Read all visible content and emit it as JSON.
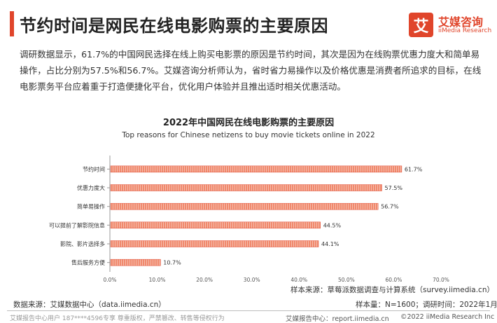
{
  "header": {
    "title": "节约时间是网民在线电影购票的主要原因"
  },
  "logo": {
    "mark": "艾",
    "name_cn": "艾媒咨询",
    "name_en": "iiMedia Research"
  },
  "intro": {
    "text": "调研数据显示，61.7%的中国网民选择在线上购买电影票的原因是节约时间，其次是因为在线购票优惠力度大和简单易操作，占比分别为57.5%和56.7%。艾媒咨询分析师认为，省时省力易操作以及价格优惠是消费者所追求的目标，在线电影票务平台应着重于打造便捷化平台，优化用户体验并且推出适时相关优惠活动。"
  },
  "chart_data": {
    "type": "bar",
    "orientation": "horizontal",
    "title": "2022年中国网民在线电影购票的主要原因",
    "subtitle": "Top reasons for Chinese netizens to buy movie tickets online in 2022",
    "categories": [
      "节约时间",
      "优惠力度大",
      "简单易操作",
      "可以提前了解影院信息",
      "影院、影片选择多",
      "售后服务方便"
    ],
    "values": [
      61.7,
      57.5,
      56.7,
      44.5,
      44.1,
      10.7
    ],
    "value_labels": [
      "61.7%",
      "57.5%",
      "56.7%",
      "44.5%",
      "44.1%",
      "10.7%"
    ],
    "xlim": [
      0,
      70
    ],
    "x_ticks": [
      0,
      10,
      20,
      30,
      40,
      50,
      60,
      70
    ],
    "x_tick_labels": [
      "0.0%",
      "10.0%",
      "20.0%",
      "30.0%",
      "40.0%",
      "50.0%",
      "60.0%",
      "70.0%"
    ],
    "grid": false,
    "bar_color": "#f08a6e",
    "bar_stripe_color": "#ffffff"
  },
  "notes": {
    "sample_source": "样本来源：草莓派数据调查与计算系统（survey.iimedia.cn）",
    "sample_size": "样本量：N=1600；调研时间：2022年1月",
    "data_source": "数据来源：艾媒数据中心（data.iimedia.cn）"
  },
  "footer": {
    "left": "艾媒报告中心用户 187****4596专享 尊重版权，严禁篡改、转售等侵权行为",
    "mid": "艾媒报告中心：report.iimedia.cn",
    "right": "©2022  iiMedia Research  Inc"
  }
}
